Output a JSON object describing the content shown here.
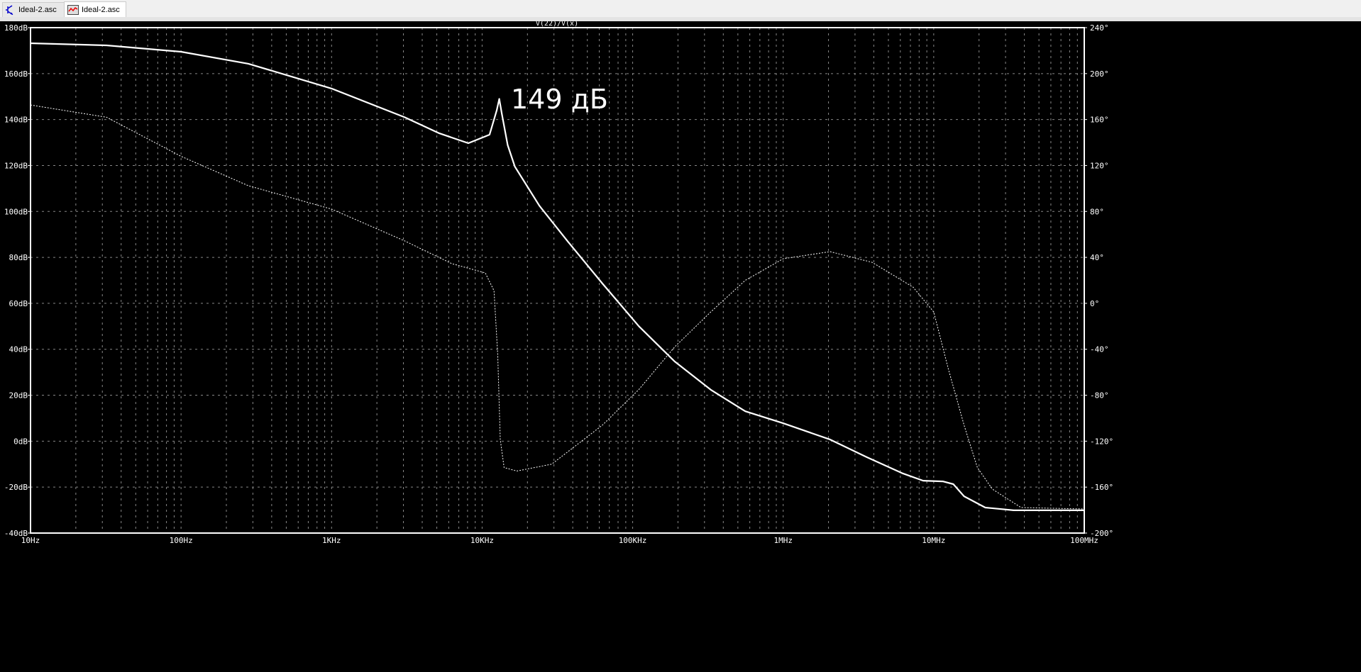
{
  "tabs": [
    {
      "label": "Ideal-2.asc",
      "icon": "schematic-transistor-icon"
    },
    {
      "label": "Ideal-2.asc",
      "icon": "waveform-plot-icon",
      "active": true
    }
  ],
  "chart_data": {
    "type": "line",
    "title": "V(22)/V(x)",
    "x_scale": "log",
    "xlim": [
      10,
      100000000
    ],
    "x_ticks": [
      {
        "v": 10,
        "label": "10Hz"
      },
      {
        "v": 100,
        "label": "100Hz"
      },
      {
        "v": 1000,
        "label": "1KHz"
      },
      {
        "v": 10000,
        "label": "10KHz"
      },
      {
        "v": 100000,
        "label": "100KHz"
      },
      {
        "v": 1000000,
        "label": "1MHz"
      },
      {
        "v": 10000000,
        "label": "10MHz"
      },
      {
        "v": 100000000,
        "label": "100MHz"
      }
    ],
    "y_left": {
      "lim": [
        -40,
        180
      ],
      "ticks": [
        "180dB",
        "160dB",
        "140dB",
        "120dB",
        "100dB",
        "80dB",
        "60dB",
        "40dB",
        "20dB",
        "0dB",
        "-20dB",
        "-40dB"
      ]
    },
    "y_right": {
      "lim": [
        -200,
        240
      ],
      "ticks": [
        "240°",
        "200°",
        "160°",
        "120°",
        "80°",
        "40°",
        "0°",
        "-40°",
        "-80°",
        "-120°",
        "-160°",
        "-200°"
      ]
    },
    "grid": true,
    "annotation": "149 дБ",
    "series": [
      {
        "axis": "left",
        "style": "solid",
        "points": [
          [
            10,
            173.2
          ],
          [
            32,
            172.3
          ],
          [
            100,
            169.5
          ],
          [
            280,
            164.3
          ],
          [
            1000,
            153.5
          ],
          [
            3055,
            141
          ],
          [
            5200,
            134
          ],
          [
            8100,
            129.7
          ],
          [
            11200,
            133.4
          ],
          [
            12500,
            144
          ],
          [
            13000,
            149
          ],
          [
            13500,
            142.7
          ],
          [
            14800,
            128.8
          ],
          [
            16500,
            119.5
          ],
          [
            24000,
            102.5
          ],
          [
            37000,
            87
          ],
          [
            63000,
            68.6
          ],
          [
            110000,
            50
          ],
          [
            190000,
            34.7
          ],
          [
            330000,
            22.4
          ],
          [
            560000,
            13
          ],
          [
            1000000,
            7.8
          ],
          [
            2050000,
            0.7
          ],
          [
            3600000,
            -7
          ],
          [
            6200000,
            -14
          ],
          [
            8500000,
            -17.2
          ],
          [
            11500000,
            -17.5
          ],
          [
            13500000,
            -18.7
          ],
          [
            15900000,
            -24
          ],
          [
            22000000,
            -28.9
          ],
          [
            34000000,
            -30.1
          ],
          [
            100000000,
            -30.1
          ]
        ]
      },
      {
        "axis": "right",
        "style": "dashed",
        "points": [
          [
            10,
            172.7
          ],
          [
            32,
            162
          ],
          [
            100,
            128
          ],
          [
            280,
            102.4
          ],
          [
            1000,
            82
          ],
          [
            3055,
            54.4
          ],
          [
            6300,
            34.5
          ],
          [
            10500,
            26.5
          ],
          [
            12000,
            11
          ],
          [
            12700,
            -44.5
          ],
          [
            13200,
            -118.5
          ],
          [
            14000,
            -143
          ],
          [
            17000,
            -146
          ],
          [
            29000,
            -140
          ],
          [
            63000,
            -106
          ],
          [
            110000,
            -75
          ],
          [
            190000,
            -38
          ],
          [
            330000,
            -7.5
          ],
          [
            560000,
            20
          ],
          [
            1000000,
            38.8
          ],
          [
            2050000,
            45
          ],
          [
            3900000,
            35.7
          ],
          [
            7300000,
            14
          ],
          [
            10000000,
            -7.5
          ],
          [
            12500000,
            -57
          ],
          [
            15900000,
            -106
          ],
          [
            19500000,
            -143
          ],
          [
            24500000,
            -161.7
          ],
          [
            38000000,
            -177.8
          ],
          [
            100000000,
            -179
          ]
        ]
      }
    ]
  }
}
